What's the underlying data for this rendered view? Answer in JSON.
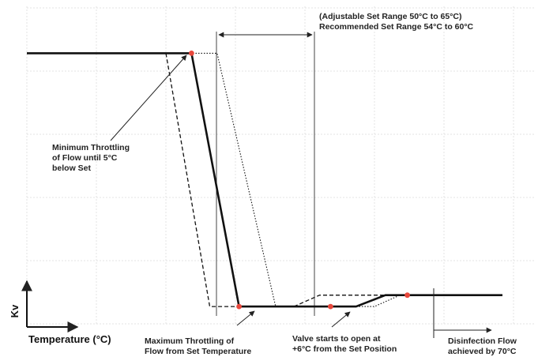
{
  "chart_data": {
    "type": "line",
    "title": "",
    "xlabel": "Temperature (°C)",
    "ylabel": "Kv",
    "grid": true,
    "legend": "none",
    "series": [
      {
        "style": "solid",
        "points": [
          [
            0,
            3.6
          ],
          [
            4.5,
            3.6
          ],
          [
            5.8,
            0.25
          ],
          [
            9,
            0.25
          ],
          [
            9.8,
            0.4
          ],
          [
            13,
            0.4
          ]
        ]
      },
      {
        "style": "dashed",
        "points": [
          [
            0,
            3.6
          ],
          [
            3.8,
            3.6
          ],
          [
            5.0,
            0.25
          ],
          [
            7.3,
            0.25
          ],
          [
            8.0,
            0.4
          ],
          [
            13,
            0.4
          ]
        ]
      },
      {
        "style": "dotted",
        "points": [
          [
            0,
            3.6
          ],
          [
            5.2,
            3.6
          ],
          [
            6.8,
            0.25
          ],
          [
            9.5,
            0.25
          ],
          [
            10.2,
            0.4
          ],
          [
            13,
            0.4
          ]
        ]
      }
    ],
    "key_points": [
      {
        "name": "min-throttling-point",
        "x": 4.5,
        "y": 3.6
      },
      {
        "name": "max-throttling-point",
        "x": 5.8,
        "y": 0.25
      },
      {
        "name": "valve-open-point",
        "x": 8.3,
        "y": 0.25
      },
      {
        "name": "disinfection-point",
        "x": 10.4,
        "y": 0.4
      }
    ],
    "marker_color": "#e8483c"
  },
  "annotations": {
    "set_range": [
      "(Adjustable Set Range 50°C to 65°C)",
      "Recommended Set Range 54°C to 60°C"
    ],
    "min_throttling": [
      "Minimum Throttling",
      "of Flow until 5°C",
      "below Set"
    ],
    "max_throttling": [
      "Maximum Throttling of",
      "Flow from Set Temperature"
    ],
    "valve_open": [
      "Valve starts to open at",
      "+6°C from the Set Position"
    ],
    "disinfection": [
      "Disinfection Flow",
      "achieved by 70°C"
    ]
  }
}
